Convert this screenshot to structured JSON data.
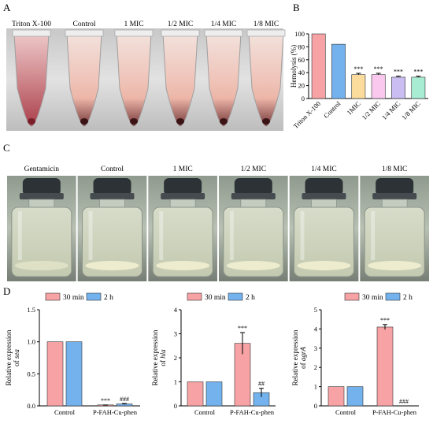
{
  "panels": {
    "A": {
      "label": "A",
      "photo_labels": [
        "Triton X-100",
        "Control",
        "1 MIC",
        "1/2 MIC",
        "1/4 MIC",
        "1/8 MIC"
      ]
    },
    "C": {
      "label": "C",
      "photo_labels": [
        "Gentamicin",
        "Control",
        "1 MIC",
        "1/2 MIC",
        "1/4 MIC",
        "1/8 MIC"
      ]
    },
    "B": {
      "label": "B"
    },
    "D": {
      "label": "D"
    }
  },
  "chart_data": [
    {
      "id": "B",
      "type": "bar",
      "ylabel": "Hemolysis (%)",
      "ylim": [
        0,
        100
      ],
      "yticks": [
        "0",
        "20",
        "40",
        "60",
        "80",
        "100"
      ],
      "categories": [
        "Triton X-100",
        "Control",
        "1MIC",
        "1/2 MIC",
        "1/4 MIC",
        "1/8 MIC"
      ],
      "values": [
        100,
        84,
        37,
        37,
        33,
        33
      ],
      "errors": [
        0,
        0,
        2,
        2,
        1.5,
        1.5
      ],
      "annotations": [
        "",
        "",
        "***",
        "***",
        "***",
        "***"
      ],
      "colors": [
        "#f7a2a4",
        "#74b2ee",
        "#fcdc9c",
        "#fac8ee",
        "#c9bdf2",
        "#a8ecd4"
      ],
      "grid": false
    },
    {
      "id": "D1",
      "type": "bar",
      "ylabel": "Relative expression of sea",
      "ylim": [
        0,
        1.5
      ],
      "yticks": [
        "0.0",
        "0.5",
        "1.0",
        "1.5"
      ],
      "categories": [
        "Control",
        "P-FAH-Cu-phen"
      ],
      "series": [
        {
          "name": "30 min",
          "color": "#f7a2a4",
          "values": [
            1.0,
            0.01
          ],
          "errors": [
            0,
            0.004
          ],
          "annotations": [
            "",
            "***"
          ]
        },
        {
          "name": "2 h",
          "color": "#74b2ee",
          "values": [
            1.0,
            0.03
          ],
          "errors": [
            0,
            0.008
          ],
          "annotations": [
            "",
            "###"
          ]
        }
      ],
      "legend": "top-left",
      "grid": false
    },
    {
      "id": "D2",
      "type": "bar",
      "ylabel": "Relative expression of hla",
      "ylim": [
        0,
        4
      ],
      "yticks": [
        "0",
        "1",
        "2",
        "3",
        "4"
      ],
      "categories": [
        "Control",
        "P-FAH-Cu-phen"
      ],
      "series": [
        {
          "name": "30 min",
          "color": "#f7a2a4",
          "values": [
            1.0,
            2.6
          ],
          "errors": [
            0,
            0.45
          ],
          "annotations": [
            "",
            "***"
          ]
        },
        {
          "name": "2 h",
          "color": "#74b2ee",
          "values": [
            1.0,
            0.55
          ],
          "errors": [
            0,
            0.18
          ],
          "annotations": [
            "",
            "##"
          ]
        }
      ],
      "legend": "top-left",
      "grid": false
    },
    {
      "id": "D3",
      "type": "bar",
      "ylabel": "Relative expression of agrA",
      "ylim": [
        0,
        5
      ],
      "yticks": [
        "0",
        "1",
        "2",
        "3",
        "4",
        "5"
      ],
      "categories": [
        "Control",
        "P-FAH-Cu-phen"
      ],
      "series": [
        {
          "name": "30 min",
          "color": "#f7a2a4",
          "values": [
            1.0,
            4.1
          ],
          "errors": [
            0,
            0.13
          ],
          "annotations": [
            "",
            "***"
          ]
        },
        {
          "name": "2 h",
          "color": "#74b2ee",
          "values": [
            1.0,
            0.0
          ],
          "errors": [
            0,
            0
          ],
          "annotations": [
            "",
            "###"
          ]
        }
      ],
      "legend": "top-right",
      "grid": false
    }
  ]
}
